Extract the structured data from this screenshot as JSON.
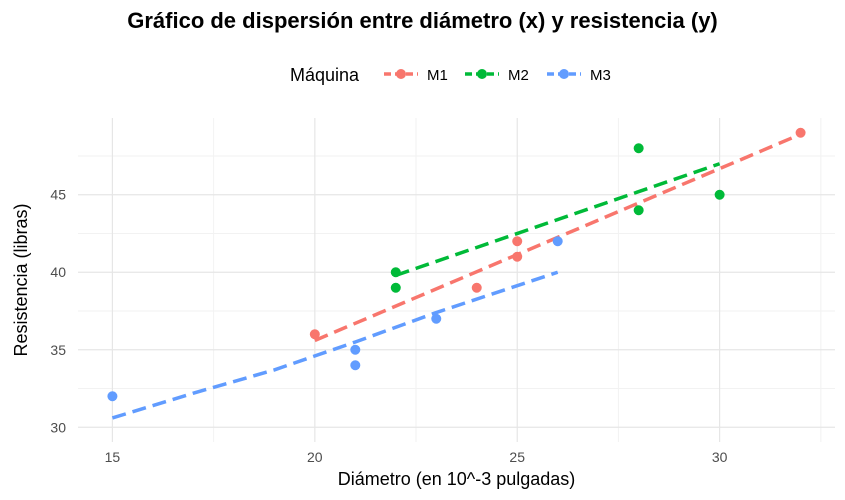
{
  "chart_data": {
    "type": "scatter",
    "title": "Gráfico de dispersión entre diámetro (x) y resistencia (y)",
    "xlabel": "Diámetro (en 10^-3 pulgadas)",
    "ylabel": "Resistencia (libras)",
    "xlim": [
      14.15,
      32.85
    ],
    "ylim": [
      29.05,
      49.95
    ],
    "xticks": [
      15,
      20,
      25,
      30
    ],
    "yticks": [
      30,
      35,
      40,
      45
    ],
    "grid": true,
    "legend": {
      "title": "Máquina",
      "position": "top",
      "entries": [
        "M1",
        "M2",
        "M3"
      ]
    },
    "series": [
      {
        "name": "M1",
        "color": "#F8766D",
        "points": [
          [
            20,
            36
          ],
          [
            24,
            39
          ],
          [
            25,
            41
          ],
          [
            25,
            42
          ],
          [
            32,
            49
          ]
        ],
        "trend": [
          [
            20,
            35.6
          ],
          [
            32,
            48.9
          ]
        ]
      },
      {
        "name": "M2",
        "color": "#00BA38",
        "points": [
          [
            22,
            39
          ],
          [
            22,
            40
          ],
          [
            28,
            44
          ],
          [
            28,
            48
          ],
          [
            30,
            45
          ]
        ],
        "trend": [
          [
            22,
            39.8
          ],
          [
            30,
            47.0
          ]
        ]
      },
      {
        "name": "M3",
        "color": "#619CFF",
        "points": [
          [
            15,
            32
          ],
          [
            21,
            34
          ],
          [
            21,
            35
          ],
          [
            23,
            37
          ],
          [
            26,
            42
          ]
        ],
        "trend": [
          [
            15,
            30.6
          ],
          [
            17,
            32.2
          ],
          [
            19,
            33.7
          ],
          [
            21,
            35.5
          ],
          [
            23,
            37.4
          ],
          [
            26,
            40.0
          ]
        ]
      }
    ]
  }
}
